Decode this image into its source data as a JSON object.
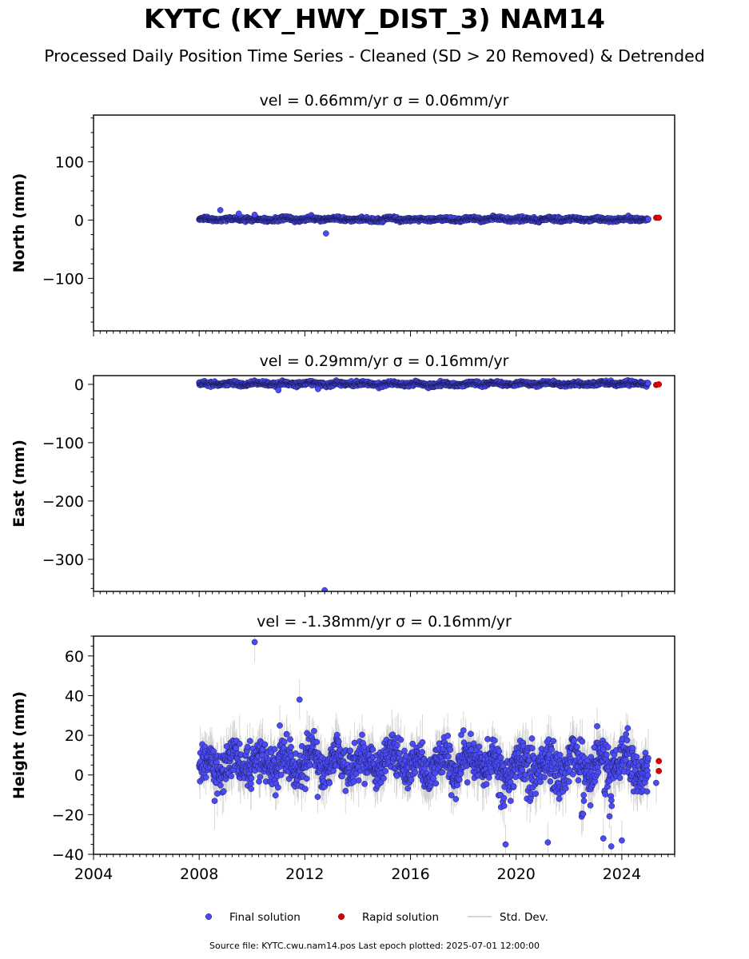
{
  "title": "KYTC (KY_HWY_DIST_3) NAM14",
  "subtitle": "Processed Daily Position Time Series - Cleaned (SD > 20 Removed) & Detrended",
  "footer": "Source file: KYTC.cwu.nam14.pos  Last epoch plotted: 2025-07-01 12:00:00",
  "colors": {
    "final": "#4b4bf5",
    "final_edge": "#1a1a55",
    "rapid": "#e00000",
    "std_dev": "#c8c8c8",
    "axes": "#000000"
  },
  "chart_data": [
    {
      "type": "scatter",
      "panel": "north",
      "title": "vel = 0.66mm/yr   σ = 0.06mm/yr",
      "ylabel": "North (mm)",
      "xlim": [
        2004.0,
        2026.0
      ],
      "ylim": [
        -190,
        180
      ],
      "yticks": [
        -100,
        0,
        100
      ],
      "xticks": [
        2004,
        2008,
        2012,
        2016,
        2020,
        2024
      ],
      "grid": false,
      "final_solution": {
        "time_span": [
          2008.0,
          2025.0
        ],
        "baseline_mm": 1.5,
        "spread_mm": 3,
        "outliers": [
          [
            2008.8,
            17
          ],
          [
            2009.5,
            11
          ],
          [
            2012.8,
            -23
          ],
          [
            2010.1,
            9
          ]
        ]
      },
      "rapid_solution": [
        [
          2025.3,
          4
        ],
        [
          2025.4,
          4
        ]
      ]
    },
    {
      "type": "scatter",
      "panel": "east",
      "title": "vel = 0.29mm/yr   σ = 0.16mm/yr",
      "ylabel": "East (mm)",
      "xlim": [
        2004.0,
        2026.0
      ],
      "ylim": [
        -355,
        15
      ],
      "yticks": [
        -300,
        -200,
        -100,
        0
      ],
      "xticks": [
        2004,
        2008,
        2012,
        2016,
        2020,
        2024
      ],
      "grid": false,
      "final_solution": {
        "time_span": [
          2008.0,
          2025.0
        ],
        "baseline_mm": 1,
        "spread_mm": 3,
        "outliers": [
          [
            2012.75,
            -353
          ],
          [
            2011.0,
            -10
          ],
          [
            2012.5,
            -8
          ]
        ]
      },
      "rapid_solution": [
        [
          2025.3,
          -1
        ],
        [
          2025.4,
          0
        ]
      ]
    },
    {
      "type": "scatter",
      "panel": "height",
      "title": "vel = -1.38mm/yr   σ = 0.16mm/yr",
      "ylabel": "Height (mm)",
      "xlabel": "",
      "xlim": [
        2004.0,
        2026.0
      ],
      "ylim": [
        -40,
        70
      ],
      "yticks": [
        -40,
        -20,
        0,
        20,
        40,
        60
      ],
      "xticks": [
        2004,
        2008,
        2012,
        2016,
        2020,
        2024
      ],
      "grid": false,
      "final_solution": {
        "time_span": [
          2008.0,
          2025.0
        ],
        "baseline_mm": 6,
        "spread_mm": 9,
        "outliers": [
          [
            2010.1,
            67
          ],
          [
            2011.8,
            38
          ],
          [
            2019.6,
            -35
          ],
          [
            2021.2,
            -34
          ],
          [
            2023.3,
            -32
          ],
          [
            2023.6,
            -36
          ],
          [
            2024.0,
            -33
          ],
          [
            2025.3,
            -4
          ]
        ]
      },
      "rapid_solution": [
        [
          2025.4,
          7
        ],
        [
          2025.4,
          2
        ]
      ]
    }
  ],
  "legend": {
    "placement": "bottom-center",
    "entries": [
      {
        "label": "Final solution",
        "kind": "final"
      },
      {
        "label": "Rapid solution",
        "kind": "rapid"
      },
      {
        "label": "Std. Dev.",
        "kind": "std"
      }
    ]
  }
}
